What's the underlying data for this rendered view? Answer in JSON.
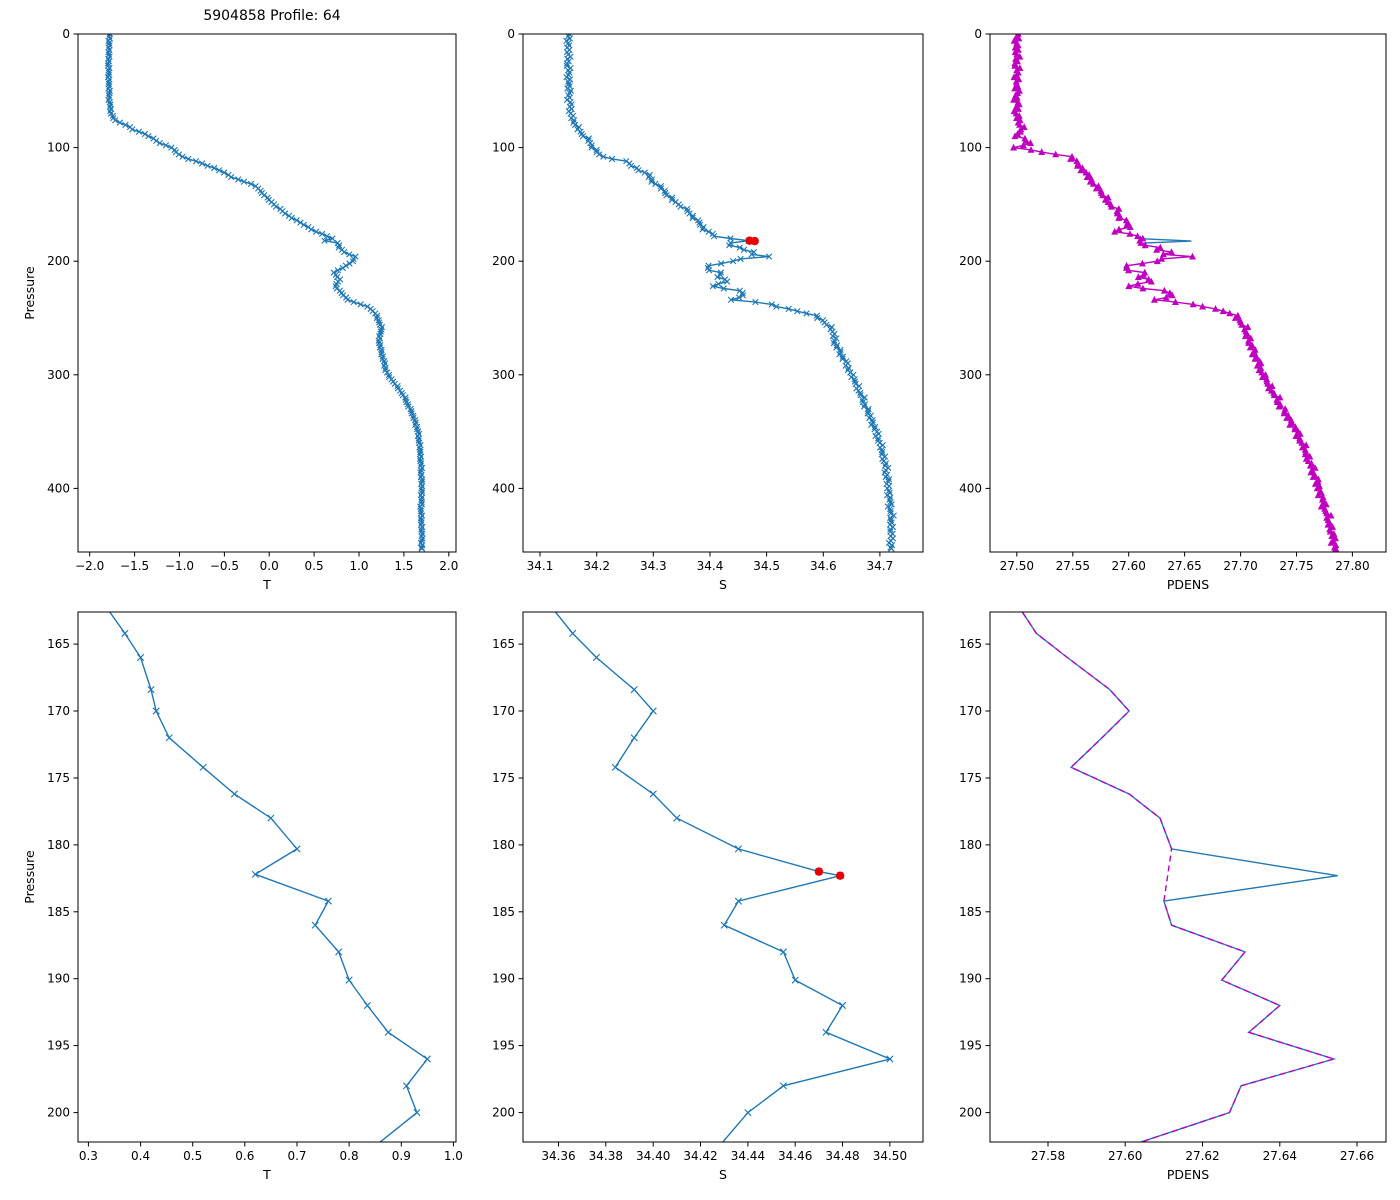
{
  "figure": {
    "title": "5904858 Profile: 64",
    "background": "#ffffff",
    "colors": {
      "blue": "#1f77b4",
      "magenta": "#bf00bf",
      "red": "#e60000"
    }
  },
  "chart_data": [
    {
      "id": "t-full",
      "type": "line",
      "xlabel": "T",
      "ylabel": "Pressure",
      "xlim": [
        -2.13,
        2.08
      ],
      "ylim": [
        0,
        456
      ],
      "y_inverted": true,
      "xticks": [
        -2.0,
        -1.5,
        -1.0,
        -0.5,
        0.0,
        0.5,
        1.0,
        1.5,
        2.0
      ],
      "xtick_labels": [
        "−2.0",
        "−1.5",
        "−1.0",
        "−0.5",
        "0.0",
        "0.5",
        "1.0",
        "1.5",
        "2.0"
      ],
      "yticks": [
        0,
        100,
        200,
        300,
        400
      ],
      "ytick_labels": [
        "0",
        "100",
        "200",
        "300",
        "400"
      ],
      "series": [
        {
          "name": "temperature-profile",
          "color": "blue",
          "marker": "x",
          "line": true,
          "step": 2,
          "jitter": 0.012,
          "anchors_p": [
            0,
            30,
            60,
            70,
            76,
            80,
            84,
            88,
            92,
            96,
            100,
            104,
            108,
            112,
            116,
            120,
            126,
            132,
            136,
            140,
            146,
            152,
            158,
            164,
            170,
            174,
            178,
            180,
            182,
            184,
            188,
            192,
            196,
            200,
            204,
            210,
            216,
            222,
            228,
            234,
            237,
            240,
            246,
            252,
            260,
            270,
            280,
            290,
            296,
            302,
            308,
            314,
            322,
            332,
            342,
            352,
            366,
            380,
            400,
            420,
            440,
            453
          ],
          "anchors_v": [
            -1.78,
            -1.79,
            -1.78,
            -1.76,
            -1.72,
            -1.6,
            -1.52,
            -1.38,
            -1.3,
            -1.22,
            -1.08,
            -1.04,
            -0.97,
            -0.82,
            -0.68,
            -0.55,
            -0.42,
            -0.2,
            -0.12,
            -0.08,
            0.0,
            0.08,
            0.18,
            0.3,
            0.43,
            0.52,
            0.65,
            0.7,
            0.62,
            0.76,
            0.78,
            0.84,
            0.95,
            0.93,
            0.86,
            0.72,
            0.78,
            0.74,
            0.8,
            0.88,
            0.97,
            1.1,
            1.18,
            1.22,
            1.25,
            1.22,
            1.25,
            1.28,
            1.3,
            1.34,
            1.4,
            1.46,
            1.52,
            1.58,
            1.63,
            1.66,
            1.68,
            1.69,
            1.7,
            1.69,
            1.7,
            1.7
          ]
        }
      ]
    },
    {
      "id": "s-full",
      "type": "line",
      "xlabel": "S",
      "ylabel": null,
      "xlim": [
        34.07,
        34.776
      ],
      "ylim": [
        0,
        456
      ],
      "y_inverted": true,
      "xticks": [
        34.1,
        34.2,
        34.3,
        34.4,
        34.5,
        34.6,
        34.7
      ],
      "xtick_labels": [
        "34.1",
        "34.2",
        "34.3",
        "34.4",
        "34.5",
        "34.6",
        "34.7"
      ],
      "yticks": [
        0,
        100,
        200,
        300,
        400
      ],
      "ytick_labels": [
        "0",
        "100",
        "200",
        "300",
        "400"
      ],
      "series": [
        {
          "name": "salinity-profile",
          "color": "blue",
          "marker": "x",
          "line": true,
          "step": 2,
          "jitter": 0.005,
          "anchors_p": [
            0,
            30,
            60,
            70,
            76,
            82,
            88,
            94,
            100,
            104,
            108,
            112,
            118,
            124,
            130,
            136,
            142,
            148,
            154,
            160,
            166,
            172,
            178,
            180,
            182,
            182.3,
            184,
            186,
            188,
            190,
            192,
            194,
            196,
            198,
            200,
            204,
            207,
            210,
            214,
            218,
            222,
            226,
            230,
            234,
            237,
            240,
            244,
            248,
            252,
            258,
            264,
            272,
            280,
            290,
            300,
            310,
            322,
            334,
            346,
            360,
            380,
            400,
            425,
            453
          ],
          "anchors_v": [
            34.15,
            34.15,
            34.152,
            34.155,
            34.158,
            34.165,
            34.175,
            34.185,
            34.195,
            34.2,
            34.21,
            34.25,
            34.27,
            34.29,
            34.3,
            34.315,
            34.325,
            34.34,
            34.355,
            34.37,
            34.38,
            34.39,
            34.41,
            34.435,
            34.47,
            34.48,
            34.435,
            34.43,
            34.455,
            34.46,
            34.48,
            34.475,
            34.5,
            34.455,
            34.44,
            34.4,
            34.39,
            34.42,
            34.415,
            34.43,
            34.405,
            34.45,
            34.46,
            34.44,
            34.5,
            34.52,
            34.555,
            34.585,
            34.6,
            34.61,
            34.62,
            34.62,
            34.63,
            34.64,
            34.65,
            34.66,
            34.67,
            34.68,
            34.69,
            34.7,
            34.71,
            34.715,
            34.72,
            34.72
          ]
        },
        {
          "name": "flagged-salinity-points",
          "color": "red",
          "marker": "dot",
          "line": false,
          "points_p": [
            182,
            182.3
          ],
          "points_v": [
            34.47,
            34.479
          ]
        }
      ]
    },
    {
      "id": "pdens-full",
      "type": "line",
      "xlabel": "PDENS",
      "ylabel": null,
      "xlim": [
        27.476,
        27.83
      ],
      "ylim": [
        0,
        456
      ],
      "y_inverted": true,
      "xticks": [
        27.5,
        27.55,
        27.6,
        27.65,
        27.7,
        27.75,
        27.8
      ],
      "xtick_labels": [
        "27.50",
        "27.55",
        "27.60",
        "27.65",
        "27.70",
        "27.75",
        "27.80"
      ],
      "yticks": [
        0,
        100,
        200,
        300,
        400
      ],
      "ytick_labels": [
        "0",
        "100",
        "200",
        "300",
        "400"
      ],
      "series": [
        {
          "name": "pdens-original-spike",
          "color": "blue",
          "marker": "none",
          "line": true,
          "points_p": [
            178,
            180.3,
            182,
            182.3,
            184.2
          ],
          "points_v": [
            27.61,
            27.612,
            27.65,
            27.656,
            27.61
          ]
        },
        {
          "name": "pdens-profile",
          "color": "magenta",
          "marker": "triangle",
          "line": true,
          "step": 2,
          "jitter": 0.0035,
          "anchors_p": [
            0,
            30,
            60,
            70,
            78,
            84,
            90,
            96,
            100,
            104,
            108,
            112,
            118,
            124,
            130,
            136,
            142,
            148,
            154,
            160,
            166,
            170,
            174.2,
            176,
            178,
            180.3,
            184.2,
            186,
            188,
            190,
            192,
            194,
            196,
            198,
            200,
            204,
            207,
            210,
            214,
            218,
            222,
            226,
            230,
            234,
            237,
            240,
            244,
            248,
            252,
            258,
            264,
            272,
            280,
            290,
            300,
            310,
            322,
            334,
            346,
            360,
            380,
            400,
            425,
            453
          ],
          "anchors_v": [
            27.5,
            27.5,
            27.5,
            27.5,
            27.502,
            27.505,
            27.5,
            27.512,
            27.5,
            27.522,
            27.548,
            27.552,
            27.558,
            27.562,
            27.568,
            27.572,
            27.578,
            27.582,
            27.588,
            27.592,
            27.598,
            27.6,
            27.586,
            27.6,
            27.61,
            27.612,
            27.61,
            27.612,
            27.63,
            27.625,
            27.64,
            27.632,
            27.654,
            27.63,
            27.625,
            27.6,
            27.594,
            27.615,
            27.61,
            27.62,
            27.6,
            27.63,
            27.64,
            27.625,
            27.65,
            27.668,
            27.685,
            27.695,
            27.7,
            27.703,
            27.706,
            27.708,
            27.712,
            27.716,
            27.72,
            27.726,
            27.733,
            27.74,
            27.748,
            27.755,
            27.763,
            27.77,
            27.778,
            27.785
          ]
        }
      ]
    },
    {
      "id": "t-zoom",
      "type": "line",
      "xlabel": "T",
      "ylabel": "Pressure",
      "xlim": [
        0.28,
        1.005
      ],
      "ylim": [
        162.6,
        202.2
      ],
      "y_inverted": true,
      "xticks": [
        0.3,
        0.4,
        0.5,
        0.6,
        0.7,
        0.8,
        0.9,
        1.0
      ],
      "xtick_labels": [
        "0.3",
        "0.4",
        "0.5",
        "0.6",
        "0.7",
        "0.8",
        "0.9",
        "1.0"
      ],
      "yticks": [
        165,
        170,
        175,
        180,
        185,
        190,
        195,
        200
      ],
      "ytick_labels": [
        "165",
        "170",
        "175",
        "180",
        "185",
        "190",
        "195",
        "200"
      ],
      "series": [
        {
          "name": "temperature-zoom",
          "color": "blue",
          "marker": "x",
          "line": true,
          "points_p": [
            162,
            164.2,
            166,
            168.4,
            170,
            172,
            174.2,
            176.2,
            178,
            180.3,
            182.2,
            184.2,
            186,
            188,
            190.1,
            192,
            194,
            196,
            198,
            200,
            202.5
          ],
          "points_v": [
            0.33,
            0.37,
            0.4,
            0.42,
            0.43,
            0.455,
            0.52,
            0.58,
            0.65,
            0.7,
            0.62,
            0.76,
            0.735,
            0.78,
            0.8,
            0.835,
            0.875,
            0.95,
            0.91,
            0.93,
            0.85
          ]
        }
      ]
    },
    {
      "id": "s-zoom",
      "type": "line",
      "xlabel": "S",
      "ylabel": null,
      "xlim": [
        34.345,
        34.514
      ],
      "ylim": [
        162.6,
        202.2
      ],
      "y_inverted": true,
      "xticks": [
        34.36,
        34.38,
        34.4,
        34.42,
        34.44,
        34.46,
        34.48,
        34.5
      ],
      "xtick_labels": [
        "34.36",
        "34.38",
        "34.40",
        "34.42",
        "34.44",
        "34.46",
        "34.48",
        "34.50"
      ],
      "yticks": [
        165,
        170,
        175,
        180,
        185,
        190,
        195,
        200
      ],
      "ytick_labels": [
        "165",
        "170",
        "175",
        "180",
        "185",
        "190",
        "195",
        "200"
      ],
      "series": [
        {
          "name": "salinity-zoom",
          "color": "blue",
          "marker": "x",
          "line": true,
          "points_p": [
            162,
            164.2,
            166,
            168.4,
            170,
            172,
            174.2,
            176.2,
            178,
            180.3,
            182,
            182.3,
            184.2,
            186,
            188,
            190.1,
            192,
            194,
            196,
            198,
            200,
            202.5
          ],
          "points_v": [
            34.356,
            34.366,
            34.376,
            34.392,
            34.4,
            34.392,
            34.384,
            34.4,
            34.41,
            34.436,
            34.47,
            34.479,
            34.436,
            34.43,
            34.455,
            34.46,
            34.48,
            34.473,
            34.5,
            34.455,
            34.44,
            34.428
          ]
        },
        {
          "name": "flagged-salinity-points-zoom",
          "color": "red",
          "marker": "dot",
          "line": false,
          "points_p": [
            182,
            182.3
          ],
          "points_v": [
            34.47,
            34.479
          ]
        }
      ]
    },
    {
      "id": "pdens-zoom",
      "type": "line",
      "xlabel": "PDENS",
      "ylabel": null,
      "xlim": [
        27.565,
        27.6675
      ],
      "ylim": [
        162.6,
        202.2
      ],
      "y_inverted": true,
      "xticks": [
        27.58,
        27.6,
        27.62,
        27.64,
        27.66
      ],
      "xtick_labels": [
        "27.58",
        "27.60",
        "27.62",
        "27.64",
        "27.66"
      ],
      "yticks": [
        165,
        170,
        175,
        180,
        185,
        190,
        195,
        200
      ],
      "ytick_labels": [
        "165",
        "170",
        "175",
        "180",
        "185",
        "190",
        "195",
        "200"
      ],
      "series": [
        {
          "name": "pdens-zoom-original",
          "color": "blue",
          "marker": "none",
          "line": true,
          "points_p": [
            162,
            164.2,
            166,
            168.4,
            170,
            172,
            174.2,
            176.2,
            178,
            180.3,
            182.3,
            184.2,
            186,
            188,
            190.1,
            192,
            194,
            196,
            198,
            200,
            202.5
          ],
          "points_v": [
            27.572,
            27.577,
            27.585,
            27.596,
            27.601,
            27.594,
            27.586,
            27.601,
            27.609,
            27.612,
            27.655,
            27.61,
            27.612,
            27.631,
            27.625,
            27.64,
            27.632,
            27.654,
            27.63,
            27.627,
            27.601
          ]
        },
        {
          "name": "pdens-zoom-corrected",
          "color": "magenta",
          "marker": "none",
          "line": true,
          "dash": "6 4",
          "points_p": [
            162,
            164.2,
            166,
            168.4,
            170,
            172,
            174.2,
            176.2,
            178,
            180.3,
            184.2,
            186,
            188,
            190.1,
            192,
            194,
            196,
            198,
            200,
            202.5
          ],
          "points_v": [
            27.572,
            27.577,
            27.585,
            27.596,
            27.601,
            27.594,
            27.586,
            27.601,
            27.609,
            27.612,
            27.61,
            27.612,
            27.631,
            27.625,
            27.64,
            27.632,
            27.654,
            27.63,
            27.627,
            27.601
          ]
        }
      ]
    }
  ]
}
